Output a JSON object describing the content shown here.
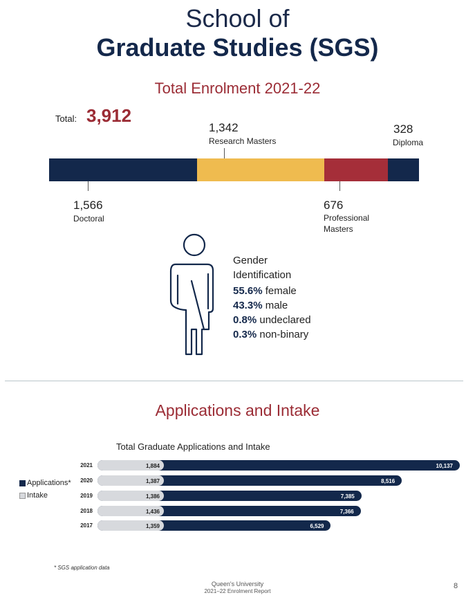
{
  "header": {
    "line1": "School of",
    "line2": "Graduate Studies (SGS)"
  },
  "enrolment": {
    "title": "Total Enrolment 2021-22",
    "total_label": "Total:",
    "total_value": "3,912",
    "segments": [
      {
        "name": "Doctoral",
        "value_text": "1,566",
        "value": 1566,
        "color": "#13284b"
      },
      {
        "name": "Research Masters",
        "value_text": "1,342",
        "value": 1342,
        "color": "#efbb4f"
      },
      {
        "name": "Professional Masters",
        "value_text": "676",
        "value": 676,
        "color": "#a52e39"
      },
      {
        "name": "Diploma",
        "value_text": "328",
        "value": 328,
        "color": "#13284b"
      }
    ],
    "professional_label_line1": "Professional",
    "professional_label_line2": "Masters"
  },
  "gender": {
    "title_line1": "Gender",
    "title_line2": "Identification",
    "items": [
      {
        "pct": "55.6%",
        "label": "female"
      },
      {
        "pct": "43.3%",
        "label": "male"
      },
      {
        "pct": "0.8%",
        "label": "undeclared"
      },
      {
        "pct": "0.3%",
        "label": "non-binary"
      }
    ],
    "icon": "gender-person-icon"
  },
  "applications": {
    "section_title": "Applications and Intake",
    "chart_title": "Total Graduate Applications and Intake",
    "footnote": "* SGS application data"
  },
  "chart_data": {
    "type": "bar",
    "orientation": "horizontal",
    "title": "Total Graduate Applications and Intake",
    "categories": [
      "2021",
      "2020",
      "2019",
      "2018",
      "2017"
    ],
    "series": [
      {
        "name": "Applications*",
        "color": "#13284b",
        "values": [
          10137,
          8516,
          7385,
          7366,
          6529
        ],
        "labels": [
          "10,137",
          "8,516",
          "7,385",
          "7,366",
          "6,529"
        ]
      },
      {
        "name": "Intake",
        "color": "#d7d9dd",
        "values": [
          1884,
          1387,
          1386,
          1436,
          1359
        ],
        "labels": [
          "1,884",
          "1,387",
          "1,386",
          "1,436",
          "1,359"
        ]
      }
    ],
    "legend_position": "left",
    "xlim": [
      0,
      10137
    ]
  },
  "footer": {
    "line1": "Queen's University",
    "line2": "2021–22 Enrolment Report",
    "page_number": "8"
  }
}
